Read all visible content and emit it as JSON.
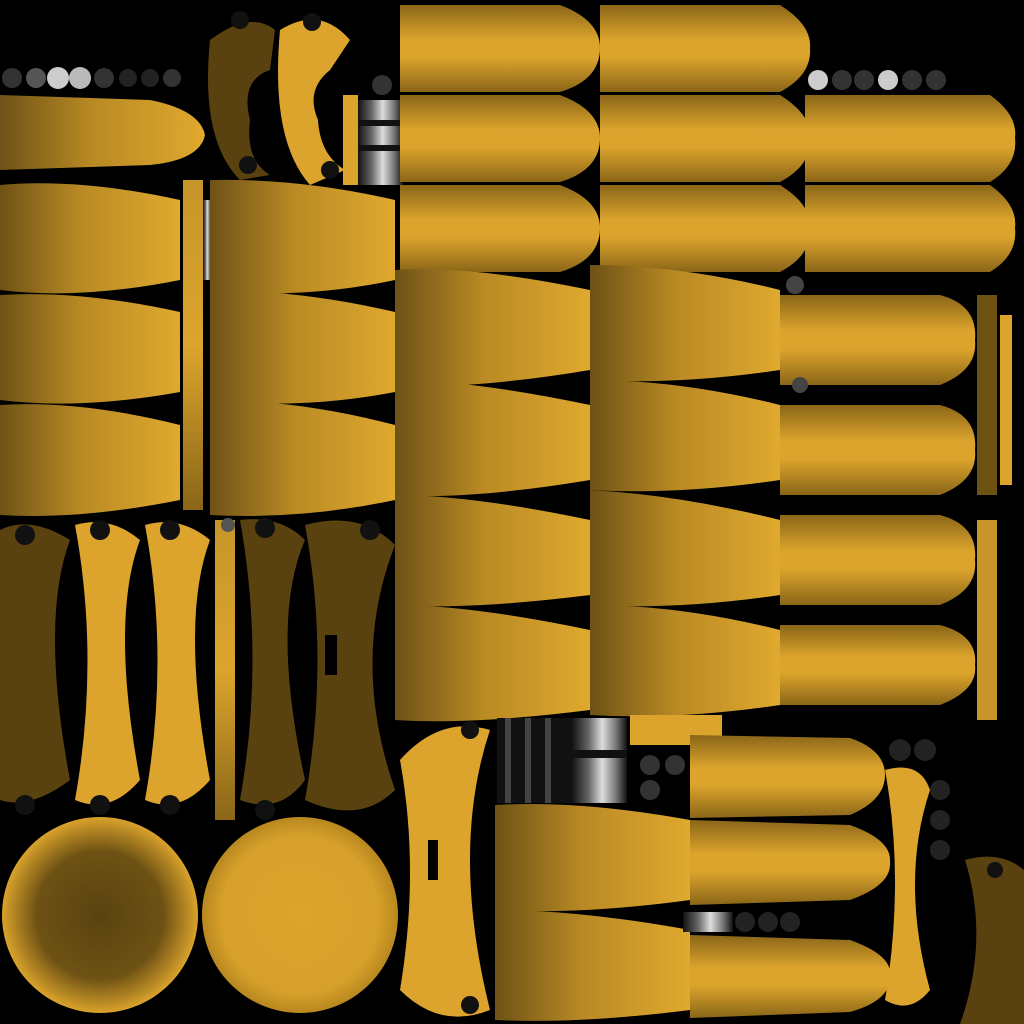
{
  "texture": {
    "background_color": "#000000",
    "base_color": "#dca42c",
    "shadow_color": "#7a5a14",
    "dark_color": "#4a3610",
    "metal_light": "#d8d8d8",
    "metal_dark": "#222222",
    "icon_names": [
      "cone-shell-icon",
      "arc-bracket-icon",
      "disc-cap-icon",
      "bolt-chain-icon",
      "coil-spring-icon",
      "rod-strip-icon"
    ]
  }
}
